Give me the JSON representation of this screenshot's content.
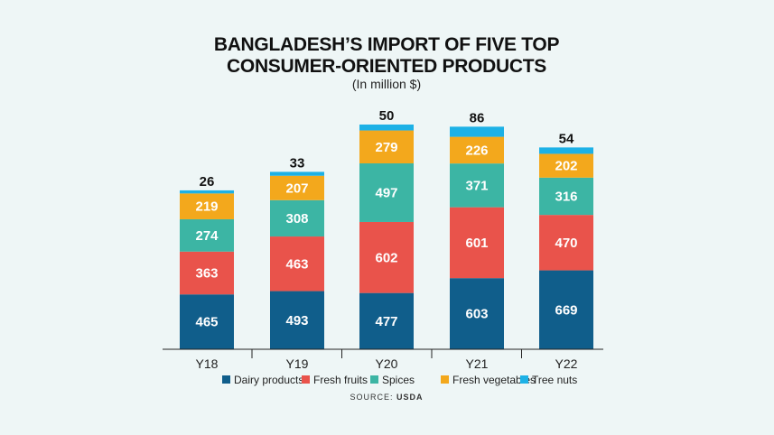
{
  "chart_data": {
    "type": "bar",
    "stacked": true,
    "title": "BANGLADESH'S IMPORT OF FIVE TOP CONSUMER-ORIENTED PRODUCTS",
    "title_lines": [
      "BANGLADESH’S IMPORT OF FIVE TOP",
      "CONSUMER-ORIENTED PRODUCTS"
    ],
    "subtitle": "(In million $)",
    "categories": [
      "Y18",
      "Y19",
      "Y20",
      "Y21",
      "Y22"
    ],
    "series": [
      {
        "name": "Dairy products",
        "color": "#105e8b",
        "values": [
          465,
          493,
          477,
          603,
          669
        ]
      },
      {
        "name": "Fresh fruits",
        "color": "#e9534b",
        "values": [
          363,
          463,
          602,
          601,
          470
        ]
      },
      {
        "name": "Spices",
        "color": "#3cb5a4",
        "values": [
          274,
          308,
          497,
          371,
          316
        ]
      },
      {
        "name": "Fresh vegetables",
        "color": "#f3a81c",
        "values": [
          219,
          207,
          279,
          226,
          202
        ]
      },
      {
        "name": "Tree nuts",
        "color": "#1db1e6",
        "values": [
          26,
          33,
          50,
          86,
          54
        ]
      }
    ],
    "legend_position": "bottom",
    "grid": false,
    "source_label": "SOURCE:",
    "source": "USDA"
  }
}
